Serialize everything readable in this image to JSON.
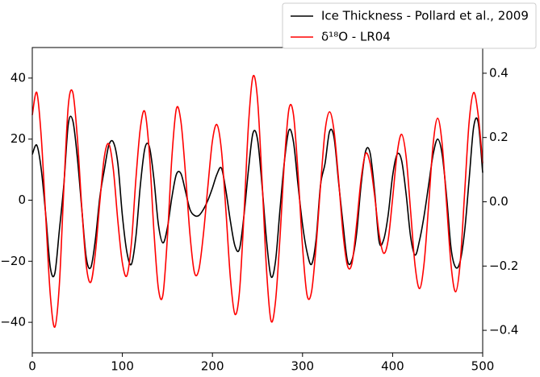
{
  "chart_data": {
    "type": "line",
    "x": [
      0,
      5,
      10,
      15,
      20,
      25,
      30,
      35,
      40,
      45,
      50,
      55,
      60,
      65,
      70,
      75,
      80,
      85,
      90,
      95,
      100,
      105,
      110,
      115,
      120,
      125,
      130,
      135,
      140,
      145,
      150,
      155,
      160,
      165,
      170,
      175,
      180,
      185,
      190,
      195,
      200,
      205,
      210,
      215,
      220,
      225,
      230,
      235,
      240,
      245,
      250,
      255,
      260,
      265,
      270,
      275,
      280,
      285,
      290,
      295,
      300,
      305,
      310,
      315,
      320,
      325,
      330,
      335,
      340,
      345,
      350,
      355,
      360,
      365,
      370,
      375,
      380,
      385,
      390,
      395,
      400,
      405,
      410,
      415,
      420,
      425,
      430,
      435,
      440,
      445,
      450,
      455,
      460,
      465,
      470,
      475,
      480,
      485,
      490,
      495,
      500
    ],
    "series": [
      {
        "name": "Ice Thickness - Pollard et al., 2009",
        "color": "#000000",
        "values": [
          15,
          18,
          10,
          -5,
          -22,
          -24,
          -10,
          5,
          25,
          26,
          14,
          -3,
          -19,
          -22,
          -13,
          1,
          10,
          18,
          19,
          12,
          -5,
          -17,
          -21,
          -12,
          5,
          17,
          17.5,
          7,
          -8,
          -14,
          -9,
          1,
          8.5,
          8.7,
          3,
          -3,
          -5,
          -5,
          -3,
          0,
          4,
          8.5,
          10.5,
          3,
          -7,
          -15,
          -16,
          -5,
          10,
          22,
          20,
          5,
          -13,
          -25,
          -20,
          -3,
          13,
          23,
          19,
          5,
          -8,
          -17,
          -21,
          -13,
          5,
          12,
          22.5,
          20.5,
          6,
          -8,
          -20,
          -19.5,
          -11,
          5,
          16,
          15.5,
          3,
          -13.5,
          -13,
          -5,
          8,
          15,
          13,
          2,
          -12,
          -18,
          -13,
          -5,
          5,
          15,
          20,
          15,
          1,
          -16,
          -22,
          -20,
          -10,
          7,
          24,
          25.5,
          9
        ]
      },
      {
        "name": "δ¹⁸O - LR04",
        "color": "#ff0000",
        "axis": "y2",
        "values": [
          0.27,
          0.34,
          0.2,
          -0.05,
          -0.29,
          -0.39,
          -0.26,
          0.04,
          0.3,
          0.34,
          0.2,
          -0.02,
          -0.2,
          -0.25,
          -0.16,
          0,
          0.14,
          0.18,
          0.1,
          -0.06,
          -0.19,
          -0.23,
          -0.13,
          0.07,
          0.23,
          0.28,
          0.15,
          -0.09,
          -0.27,
          -0.29,
          -0.11,
          0.14,
          0.29,
          0.25,
          0.09,
          -0.1,
          -0.22,
          -0.21,
          -0.1,
          0.05,
          0.19,
          0.24,
          0.16,
          -0.03,
          -0.24,
          -0.35,
          -0.28,
          -0.04,
          0.24,
          0.39,
          0.32,
          0.07,
          -0.21,
          -0.37,
          -0.31,
          -0.11,
          0.13,
          0.29,
          0.27,
          0.09,
          -0.14,
          -0.29,
          -0.28,
          -0.14,
          0.05,
          0.22,
          0.28,
          0.22,
          0.07,
          -0.1,
          -0.2,
          -0.19,
          -0.07,
          0.07,
          0.15,
          0.12,
          0.02,
          -0.1,
          -0.16,
          -0.12,
          0.01,
          0.15,
          0.21,
          0.14,
          -0.03,
          -0.2,
          -0.27,
          -0.19,
          -0.01,
          0.18,
          0.26,
          0.18,
          -0.01,
          -0.2,
          -0.28,
          -0.19,
          0.03,
          0.25,
          0.34,
          0.27,
          0.12
        ]
      }
    ],
    "xlim": [
      0,
      500
    ],
    "xticks": [
      0,
      100,
      200,
      300,
      400,
      500
    ],
    "ylim": [
      -50,
      50
    ],
    "yticks": [
      {
        "value": -40,
        "label": "−40"
      },
      {
        "value": -20,
        "label": "−20"
      },
      0,
      20,
      40
    ],
    "y2lim": [
      -0.47,
      0.48
    ],
    "y2ticks": [
      {
        "value": -0.4,
        "label": "−0.4"
      },
      {
        "value": -0.2,
        "label": "−0.2"
      },
      {
        "value": 0,
        "label": "0.0"
      },
      0.2,
      0.4
    ],
    "legend": "upper right"
  }
}
